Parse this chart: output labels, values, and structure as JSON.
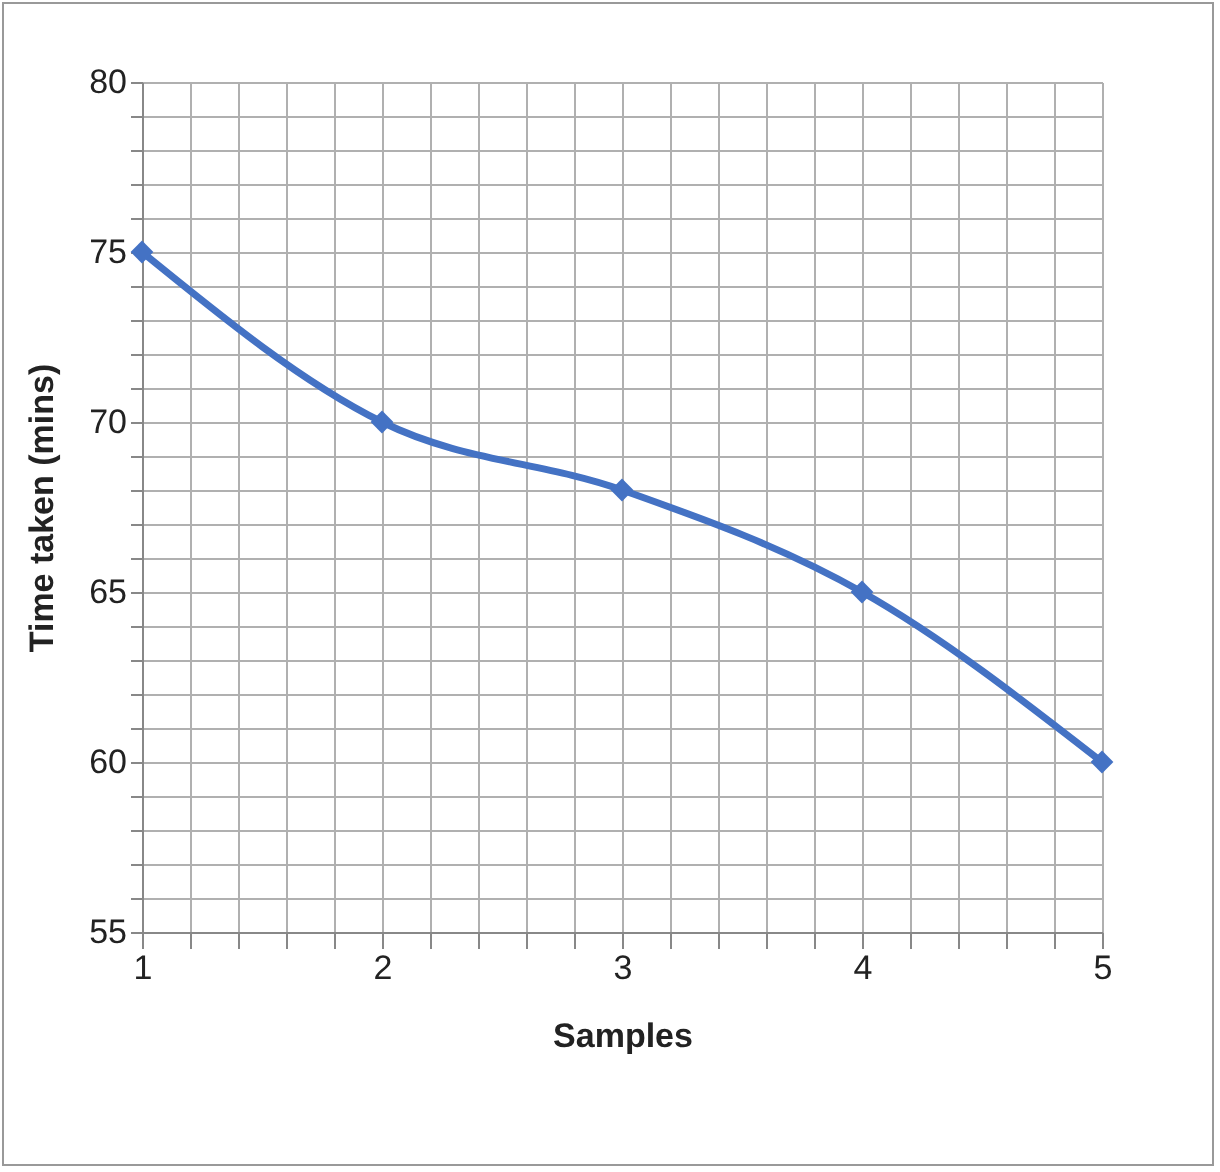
{
  "chart_data": {
    "type": "line",
    "xlabel": "Samples",
    "ylabel": "Time taken (mins)",
    "x": [
      1,
      2,
      3,
      4,
      5
    ],
    "series": [
      {
        "color": "#4472c4",
        "values": [
          75,
          70,
          68,
          65,
          60
        ]
      }
    ],
    "marker": "diamond",
    "line_style": "solid",
    "grid": true,
    "xlim": [
      1,
      5
    ],
    "ylim": [
      55,
      80
    ],
    "xticks": [
      1,
      {
        "value": 1.2,
        "label": null
      },
      {
        "value": 1.4,
        "label": null
      },
      {
        "value": 1.6,
        "label": null
      },
      {
        "value": 1.8,
        "label": null
      },
      2,
      {
        "value": 2.2,
        "label": null
      },
      {
        "value": 2.4,
        "label": null
      },
      {
        "value": 2.6,
        "label": null
      },
      {
        "value": 2.8,
        "label": null
      },
      3,
      {
        "value": 3.2,
        "label": null
      },
      {
        "value": 3.4,
        "label": null
      },
      {
        "value": 3.6,
        "label": null
      },
      {
        "value": 3.8,
        "label": null
      },
      4,
      {
        "value": 4.2,
        "label": null
      },
      {
        "value": 4.4,
        "label": null
      },
      {
        "value": 4.6,
        "label": null
      },
      {
        "value": 4.8,
        "label": null
      },
      5
    ],
    "yticks": [
      55,
      {
        "value": 56,
        "label": null
      },
      {
        "value": 57,
        "label": null
      },
      {
        "value": 58,
        "label": null
      },
      {
        "value": 59,
        "label": null
      },
      60,
      {
        "value": 61,
        "label": null
      },
      {
        "value": 62,
        "label": null
      },
      {
        "value": 63,
        "label": null
      },
      {
        "value": 64,
        "label": null
      },
      65,
      {
        "value": 66,
        "label": null
      },
      {
        "value": 67,
        "label": null
      },
      {
        "value": 68,
        "label": null
      },
      {
        "value": 69,
        "label": null
      },
      70,
      {
        "value": 71,
        "label": null
      },
      {
        "value": 72,
        "label": null
      },
      {
        "value": 73,
        "label": null
      },
      {
        "value": 74,
        "label": null
      },
      75,
      {
        "value": 76,
        "label": null
      },
      {
        "value": 77,
        "label": null
      },
      {
        "value": 78,
        "label": null
      },
      {
        "value": 79,
        "label": null
      },
      80
    ]
  }
}
